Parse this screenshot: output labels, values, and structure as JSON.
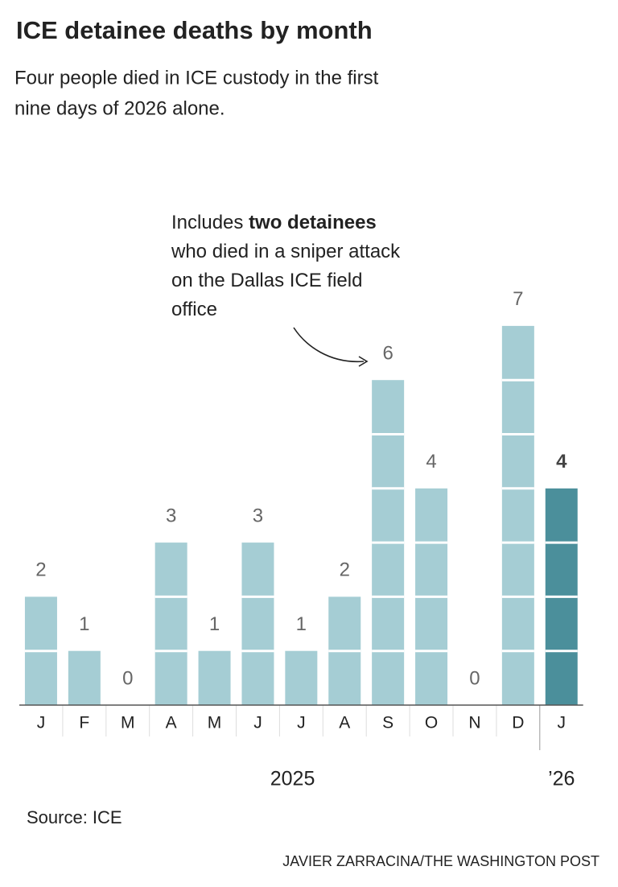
{
  "chart_data": {
    "type": "bar",
    "title": "ICE detainee deaths by month",
    "subtitle_lines": [
      "Four people died in ICE custody in the first",
      "nine days of 2026 alone."
    ],
    "categories": [
      "J",
      "F",
      "M",
      "A",
      "M",
      "J",
      "J",
      "A",
      "S",
      "O",
      "N",
      "D",
      "J"
    ],
    "values": [
      2,
      1,
      0,
      3,
      1,
      3,
      1,
      2,
      6,
      4,
      0,
      7,
      4
    ],
    "color": "#a5cdd4",
    "highlight_index": 12,
    "highlight_color": "#4b8f9b",
    "year_labels": [
      "2025",
      "’26"
    ],
    "annotation": [
      [
        {
          "text": "Includes "
        },
        {
          "text": "two detainees",
          "weight": "bold"
        }
      ],
      [
        {
          "text": "who died in a sniper attack"
        }
      ],
      [
        {
          "text": "on the Dallas ICE field"
        }
      ],
      [
        {
          "text": "office"
        }
      ]
    ],
    "source": "Source: ICE",
    "credit": "JAVIER ZARRACINA/THE WASHINGTON POST"
  }
}
